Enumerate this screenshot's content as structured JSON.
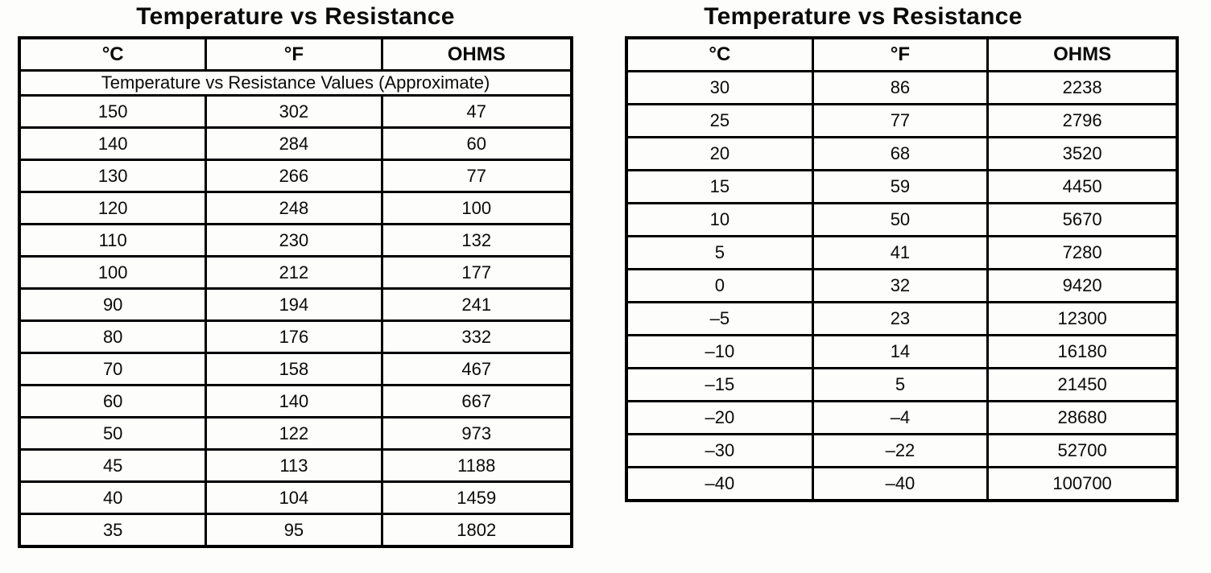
{
  "page": {
    "background_color": "#fdfdfc",
    "text_color": "#0a0a0a",
    "border_color": "#000000"
  },
  "left_table": {
    "title": "Temperature vs Resistance",
    "headers": [
      "°C",
      "°F",
      "OHMS"
    ],
    "subtitle": "Temperature vs Resistance Values (Approximate)",
    "rows": [
      [
        "150",
        "302",
        "47"
      ],
      [
        "140",
        "284",
        "60"
      ],
      [
        "130",
        "266",
        "77"
      ],
      [
        "120",
        "248",
        "100"
      ],
      [
        "110",
        "230",
        "132"
      ],
      [
        "100",
        "212",
        "177"
      ],
      [
        "90",
        "194",
        "241"
      ],
      [
        "80",
        "176",
        "332"
      ],
      [
        "70",
        "158",
        "467"
      ],
      [
        "60",
        "140",
        "667"
      ],
      [
        "50",
        "122",
        "973"
      ],
      [
        "45",
        "113",
        "1188"
      ],
      [
        "40",
        "104",
        "1459"
      ],
      [
        "35",
        "95",
        "1802"
      ]
    ]
  },
  "right_table": {
    "title": "Temperature vs Resistance",
    "headers": [
      "°C",
      "°F",
      "OHMS"
    ],
    "rows": [
      [
        "30",
        "86",
        "2238"
      ],
      [
        "25",
        "77",
        "2796"
      ],
      [
        "20",
        "68",
        "3520"
      ],
      [
        "15",
        "59",
        "4450"
      ],
      [
        "10",
        "50",
        "5670"
      ],
      [
        "5",
        "41",
        "7280"
      ],
      [
        "0",
        "32",
        "9420"
      ],
      [
        "–5",
        "23",
        "12300"
      ],
      [
        "–10",
        "14",
        "16180"
      ],
      [
        "–15",
        "5",
        "21450"
      ],
      [
        "–20",
        "–4",
        "28680"
      ],
      [
        "–30",
        "–22",
        "52700"
      ],
      [
        "–40",
        "–40",
        "100700"
      ]
    ]
  }
}
